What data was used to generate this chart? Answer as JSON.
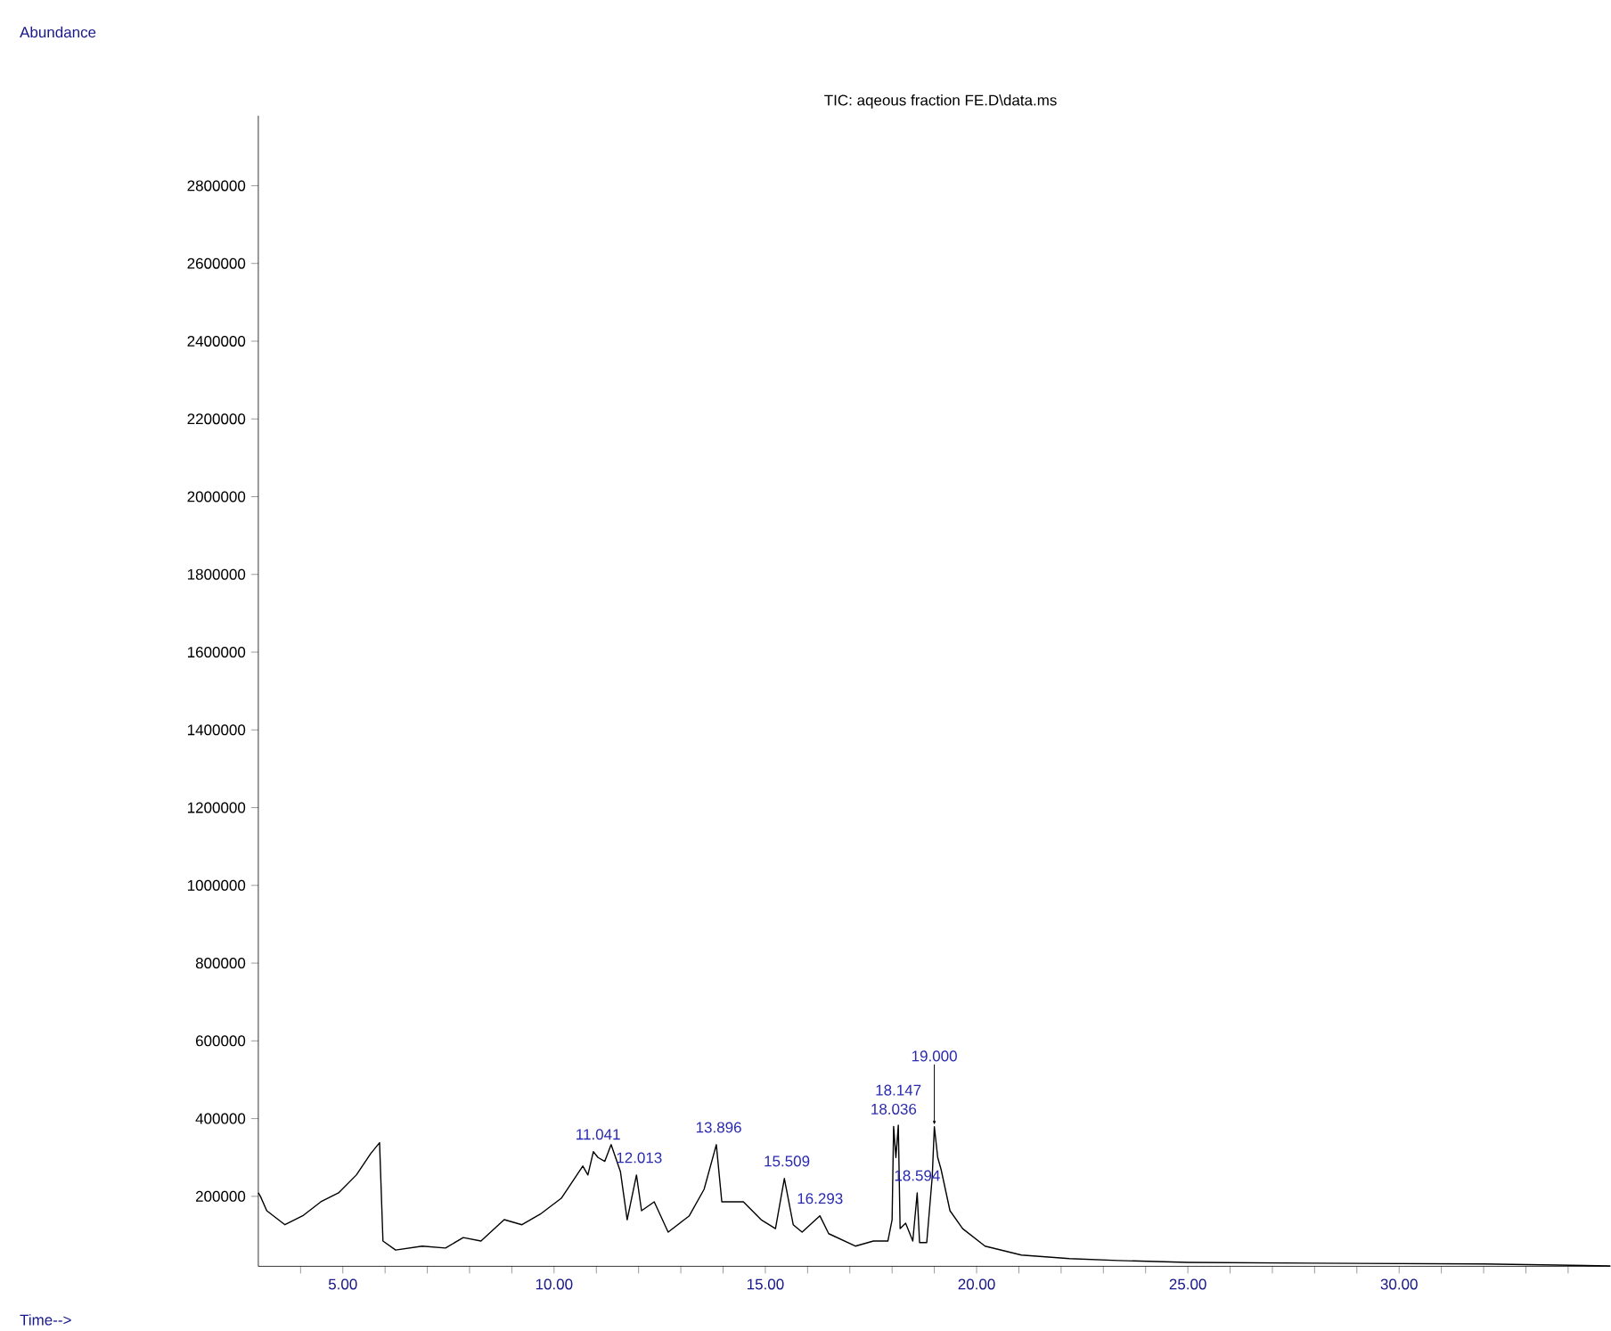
{
  "chart_data": {
    "type": "line",
    "title": "TIC: aqeous fraction  FE.D\\data.ms",
    "x": [
      3.0,
      3.05,
      3.2,
      3.63,
      4.05,
      4.48,
      4.9,
      5.32,
      5.66,
      5.87,
      5.95,
      6.25,
      6.88,
      7.43,
      7.85,
      8.27,
      8.82,
      9.24,
      9.67,
      10.17,
      10.68,
      10.8,
      10.93,
      11.04,
      11.2,
      11.35,
      11.57,
      11.73,
      11.95,
      12.07,
      12.37,
      12.7,
      13.2,
      13.55,
      13.84,
      13.97,
      14.48,
      14.9,
      15.24,
      15.45,
      15.66,
      15.87,
      16.29,
      16.5,
      17.13,
      17.56,
      17.9,
      18.0,
      18.036,
      18.09,
      18.147,
      18.19,
      18.32,
      18.49,
      18.594,
      18.65,
      18.82,
      18.95,
      19.0,
      19.08,
      19.16,
      19.37,
      19.67,
      20.2,
      21.06,
      22.2,
      23.34,
      25.0,
      28.0,
      32.0,
      35.0
    ],
    "values": [
      209000,
      200000,
      163000,
      127000,
      150000,
      186000,
      209000,
      255000,
      310000,
      338000,
      85000,
      62000,
      72000,
      67000,
      94000,
      85000,
      140000,
      127000,
      154000,
      195000,
      278000,
      255000,
      315000,
      300000,
      290000,
      333000,
      264000,
      140000,
      255000,
      163000,
      186000,
      108000,
      150000,
      218000,
      333000,
      186000,
      186000,
      140000,
      117000,
      246000,
      127000,
      108000,
      150000,
      104000,
      72000,
      85000,
      85000,
      140000,
      380000,
      300000,
      383000,
      117000,
      131000,
      85000,
      209000,
      81000,
      81000,
      250000,
      379000,
      300000,
      269000,
      163000,
      117000,
      72000,
      49000,
      40000,
      35000,
      30000,
      28000,
      26000,
      21000
    ],
    "color": "#000000",
    "xlim": [
      3,
      35
    ],
    "ylim": [
      20000,
      2980000
    ],
    "xticks": [
      {
        "value": 4,
        "label": null
      },
      {
        "value": 5,
        "label": "5.00"
      },
      {
        "value": 6,
        "label": null
      },
      {
        "value": 7,
        "label": null
      },
      {
        "value": 8,
        "label": null
      },
      {
        "value": 9,
        "label": null
      },
      {
        "value": 10,
        "label": "10.00"
      },
      {
        "value": 11,
        "label": null
      },
      {
        "value": 12,
        "label": null
      },
      {
        "value": 13,
        "label": null
      },
      {
        "value": 14,
        "label": null
      },
      {
        "value": 15,
        "label": "15.00"
      },
      {
        "value": 16,
        "label": null
      },
      {
        "value": 17,
        "label": null
      },
      {
        "value": 18,
        "label": null
      },
      {
        "value": 19,
        "label": null
      },
      {
        "value": 20,
        "label": "20.00"
      },
      {
        "value": 21,
        "label": null
      },
      {
        "value": 22,
        "label": null
      },
      {
        "value": 23,
        "label": null
      },
      {
        "value": 24,
        "label": null
      },
      {
        "value": 25,
        "label": "25.00"
      },
      {
        "value": 26,
        "label": null
      },
      {
        "value": 27,
        "label": null
      },
      {
        "value": 28,
        "label": null
      },
      {
        "value": 29,
        "label": null
      },
      {
        "value": 30,
        "label": "30.00"
      },
      {
        "value": 31,
        "label": null
      },
      {
        "value": 32,
        "label": null
      },
      {
        "value": 33,
        "label": null
      },
      {
        "value": 34,
        "label": null
      }
    ],
    "yticks": [
      200000,
      400000,
      600000,
      800000,
      1000000,
      1200000,
      1400000,
      1600000,
      1800000,
      2000000,
      2200000,
      2400000,
      2600000,
      2800000
    ],
    "annotations": [
      {
        "text": "11.041",
        "x": 11.041,
        "y": 315000
      },
      {
        "text": "12.013",
        "x": 12.013,
        "y": 255000
      },
      {
        "text": "13.896",
        "x": 13.896,
        "y": 333000
      },
      {
        "text": "15.509",
        "x": 15.509,
        "y": 246000
      },
      {
        "text": "16.293",
        "x": 16.293,
        "y": 150000
      },
      {
        "text": "18.036",
        "x": 18.036,
        "y": 380000
      },
      {
        "text": "18.147",
        "x": 18.147,
        "y": 383000
      },
      {
        "text": "18.594",
        "x": 18.594,
        "y": 209000
      },
      {
        "text": "19.000",
        "x": 19.0,
        "y": 379000
      },
      "Abundance",
      "Time-->"
    ],
    "grid": false,
    "marker": "none",
    "line_style": "solid"
  }
}
